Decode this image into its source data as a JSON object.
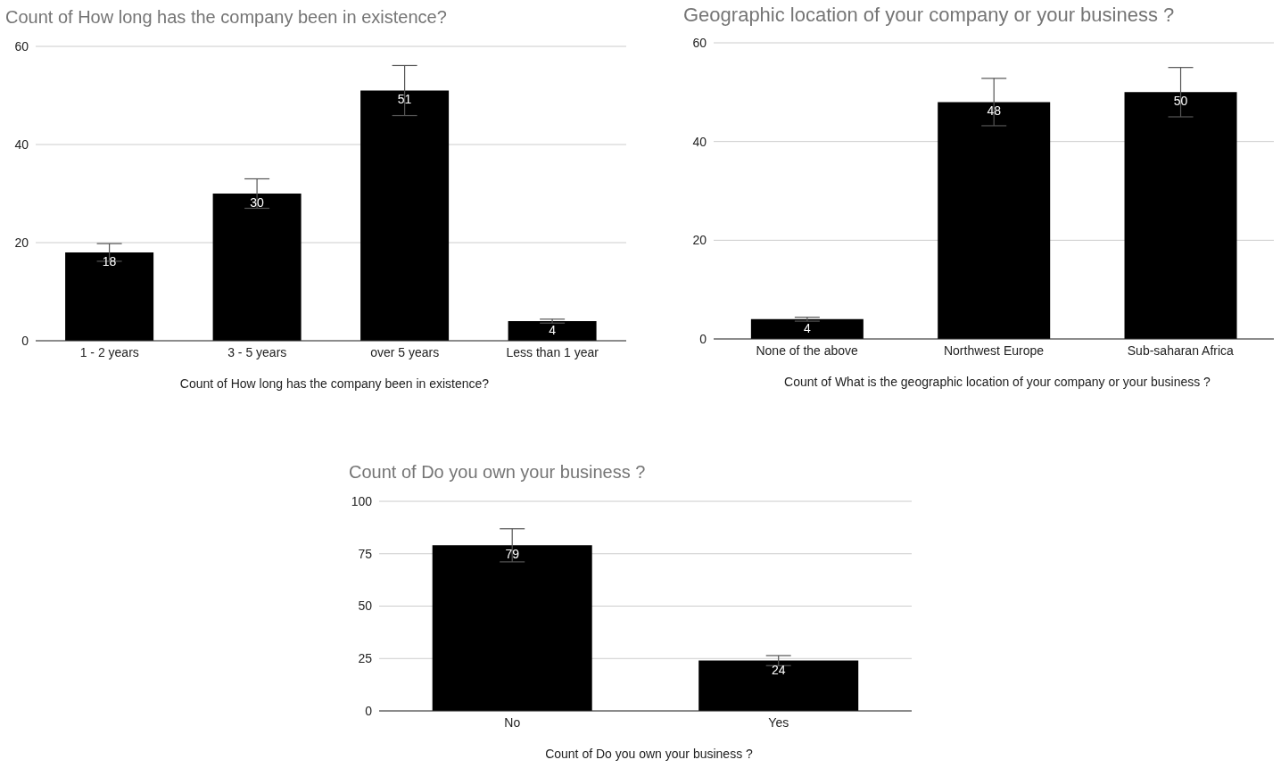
{
  "chart_data": [
    {
      "type": "bar",
      "title": "Count of How long has the company been in existence?",
      "xlabel": "Count of How long has the company been in existence?",
      "categories": [
        "1 - 2 years",
        "3 - 5 years",
        "over 5 years",
        "Less than 1 year"
      ],
      "values": [
        18,
        30,
        51,
        4
      ],
      "errors": [
        1.8,
        3,
        5.1,
        0.4
      ],
      "color": "#000000",
      "ylim": [
        0,
        60
      ],
      "yticks": [
        0,
        20,
        40,
        60
      ],
      "grid": "y",
      "data_labels": true,
      "legend": false
    },
    {
      "type": "bar",
      "title": "Geographic location of your company or your business ?",
      "xlabel": "Count of What is the geographic location of your company or your business ?",
      "categories": [
        "None of the above",
        "Northwest Europe",
        "Sub-saharan Africa"
      ],
      "values": [
        4,
        48,
        50
      ],
      "errors": [
        0.4,
        4.8,
        5
      ],
      "color": "#000000",
      "ylim": [
        0,
        60
      ],
      "yticks": [
        0,
        20,
        40,
        60
      ],
      "grid": "y",
      "data_labels": true,
      "legend": false
    },
    {
      "type": "bar",
      "title": "Count of Do you own your business ?",
      "xlabel": "Count of Do you own your business ?",
      "categories": [
        "No",
        "Yes"
      ],
      "values": [
        79,
        24
      ],
      "errors": [
        7.9,
        2.4
      ],
      "color": "#000000",
      "ylim": [
        0,
        100
      ],
      "yticks": [
        0,
        25,
        50,
        75,
        100
      ],
      "grid": "y",
      "data_labels": true,
      "legend": false
    }
  ]
}
